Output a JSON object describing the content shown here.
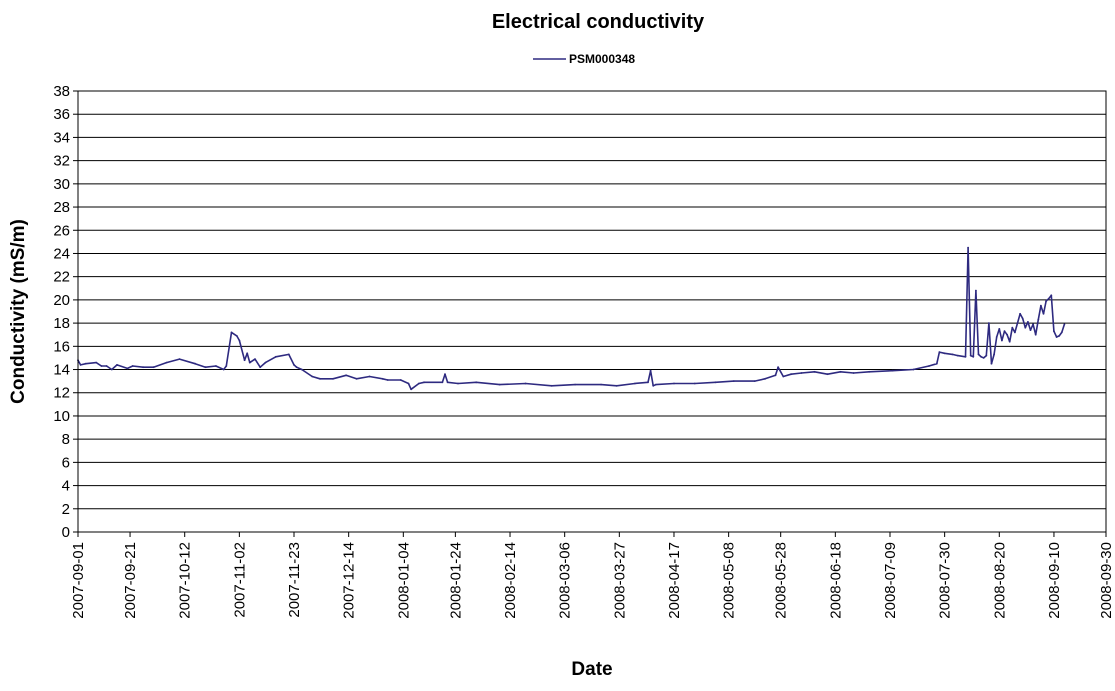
{
  "chart_data": {
    "type": "line",
    "title": "Electrical conductivity",
    "xlabel": "Date",
    "ylabel": "Conductivity (mS/m)",
    "ylim": [
      0,
      38
    ],
    "y_ticks": [
      0,
      2,
      4,
      6,
      8,
      10,
      12,
      14,
      16,
      18,
      20,
      22,
      24,
      26,
      28,
      30,
      32,
      34,
      36,
      38
    ],
    "x_ticks": [
      "2007-09-01",
      "2007-09-21",
      "2007-10-12",
      "2007-11-02",
      "2007-11-23",
      "2007-12-14",
      "2008-01-04",
      "2008-01-24",
      "2008-02-14",
      "2008-03-06",
      "2008-03-27",
      "2008-04-17",
      "2008-05-08",
      "2008-05-28",
      "2008-06-18",
      "2008-07-09",
      "2008-07-30",
      "2008-08-20",
      "2008-09-10",
      "2008-09-30"
    ],
    "xlim": [
      "2007-09-01",
      "2008-09-30"
    ],
    "grid": true,
    "legend": "top-center",
    "line_color": "#2e2a80",
    "series": [
      {
        "name": "PSM000348",
        "x": [
          "2007-09-01",
          "2007-09-02",
          "2007-09-04",
          "2007-09-08",
          "2007-09-10",
          "2007-09-12",
          "2007-09-14",
          "2007-09-16",
          "2007-09-20",
          "2007-09-22",
          "2007-09-26",
          "2007-09-30",
          "2007-10-05",
          "2007-10-10",
          "2007-10-16",
          "2007-10-20",
          "2007-10-24",
          "2007-10-27",
          "2007-10-28",
          "2007-10-30",
          "2007-11-01",
          "2007-11-02",
          "2007-11-04",
          "2007-11-05",
          "2007-11-06",
          "2007-11-08",
          "2007-11-10",
          "2007-11-12",
          "2007-11-16",
          "2007-11-21",
          "2007-11-23",
          "2007-11-24",
          "2007-11-26",
          "2007-11-30",
          "2007-12-03",
          "2007-12-08",
          "2007-12-13",
          "2007-12-17",
          "2007-12-22",
          "2007-12-27",
          "2007-12-29",
          "2008-01-03",
          "2008-01-06",
          "2008-01-07",
          "2008-01-10",
          "2008-01-12",
          "2008-01-19",
          "2008-01-20",
          "2008-01-21",
          "2008-01-25",
          "2008-02-01",
          "2008-02-10",
          "2008-02-20",
          "2008-03-01",
          "2008-03-10",
          "2008-03-20",
          "2008-03-26",
          "2008-04-02",
          "2008-04-07",
          "2008-04-08",
          "2008-04-09",
          "2008-04-10",
          "2008-04-17",
          "2008-04-25",
          "2008-05-03",
          "2008-05-10",
          "2008-05-18",
          "2008-05-22",
          "2008-05-26",
          "2008-05-27",
          "2008-05-29",
          "2008-06-01",
          "2008-06-05",
          "2008-06-10",
          "2008-06-15",
          "2008-06-20",
          "2008-06-25",
          "2008-07-01",
          "2008-07-10",
          "2008-07-18",
          "2008-07-24",
          "2008-07-27",
          "2008-07-28",
          "2008-07-30",
          "2008-08-02",
          "2008-08-04",
          "2008-08-07",
          "2008-08-08",
          "2008-08-09",
          "2008-08-10",
          "2008-08-11",
          "2008-08-12",
          "2008-08-13",
          "2008-08-14",
          "2008-08-15",
          "2008-08-16",
          "2008-08-17",
          "2008-08-18",
          "2008-08-19",
          "2008-08-20",
          "2008-08-21",
          "2008-08-22",
          "2008-08-23",
          "2008-08-24",
          "2008-08-25",
          "2008-08-26",
          "2008-08-27",
          "2008-08-28",
          "2008-08-29",
          "2008-08-30",
          "2008-08-31",
          "2008-09-01",
          "2008-09-02",
          "2008-09-03",
          "2008-09-04",
          "2008-09-05",
          "2008-09-06",
          "2008-09-07",
          "2008-09-08",
          "2008-09-09",
          "2008-09-10",
          "2008-09-11",
          "2008-09-12",
          "2008-09-13",
          "2008-09-14"
        ],
        "y": [
          14.8,
          14.4,
          14.5,
          14.6,
          14.3,
          14.3,
          14.0,
          14.4,
          14.1,
          14.3,
          14.2,
          14.2,
          14.6,
          14.9,
          14.5,
          14.2,
          14.3,
          14.0,
          14.3,
          17.2,
          16.9,
          16.5,
          14.8,
          15.4,
          14.6,
          14.9,
          14.2,
          14.6,
          15.1,
          15.3,
          14.4,
          14.2,
          14.0,
          13.4,
          13.2,
          13.2,
          13.5,
          13.2,
          13.4,
          13.2,
          13.1,
          13.1,
          12.8,
          12.3,
          12.8,
          12.9,
          12.9,
          13.6,
          12.9,
          12.8,
          12.9,
          12.7,
          12.8,
          12.6,
          12.7,
          12.7,
          12.6,
          12.8,
          12.9,
          13.9,
          12.6,
          12.7,
          12.8,
          12.8,
          12.9,
          13.0,
          13.0,
          13.2,
          13.5,
          14.2,
          13.4,
          13.6,
          13.7,
          13.8,
          13.6,
          13.8,
          13.7,
          13.8,
          13.9,
          14.0,
          14.3,
          14.5,
          15.5,
          15.4,
          15.3,
          15.2,
          15.1,
          24.5,
          15.2,
          15.1,
          20.8,
          15.3,
          15.1,
          15.0,
          15.2,
          18.0,
          14.5,
          15.3,
          16.8,
          17.5,
          16.5,
          17.3,
          17.0,
          16.4,
          17.6,
          17.2,
          18.0,
          18.8,
          18.4,
          17.6,
          18.1,
          17.4,
          17.9,
          17.0,
          18.3,
          19.5,
          18.8,
          19.9,
          20.1,
          20.4,
          17.3,
          16.8,
          16.9,
          17.2,
          17.9
        ]
      }
    ]
  }
}
